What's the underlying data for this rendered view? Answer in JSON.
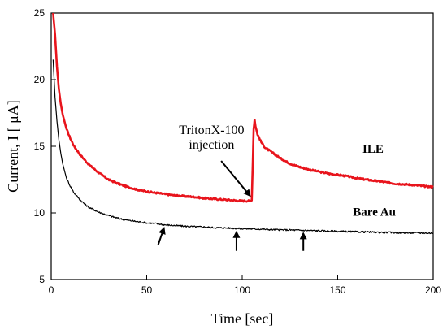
{
  "chart_data": {
    "type": "line",
    "xlabel": "Time [sec]",
    "ylabel": "Current, I [ μA]",
    "xlim": [
      0,
      200
    ],
    "ylim": [
      5,
      25
    ],
    "xticks": [
      0,
      50,
      100,
      150,
      200
    ],
    "yticks": [
      5,
      10,
      15,
      20,
      25
    ],
    "grid": false,
    "series": [
      {
        "name": "ILE",
        "color": "#e8141c",
        "x": [
          1,
          2,
          3,
          4,
          5,
          6,
          8,
          10,
          12,
          15,
          18,
          20,
          25,
          30,
          35,
          40,
          45,
          50,
          55,
          60,
          65,
          70,
          75,
          80,
          85,
          90,
          95,
          100,
          104,
          105,
          105.5,
          106,
          106.5,
          107,
          108,
          110,
          112,
          115,
          118,
          120,
          125,
          130,
          135,
          140,
          145,
          150,
          155,
          160,
          165,
          170,
          175,
          180,
          185,
          190,
          195,
          200
        ],
        "y": [
          25,
          23.4,
          21.0,
          19.3,
          18.2,
          17.4,
          16.3,
          15.6,
          15.0,
          14.4,
          13.9,
          13.6,
          13.0,
          12.5,
          12.2,
          11.95,
          11.75,
          11.6,
          11.5,
          11.4,
          11.3,
          11.25,
          11.2,
          11.1,
          11.05,
          11.0,
          10.95,
          10.9,
          10.9,
          10.95,
          13.5,
          16.3,
          17.0,
          16.5,
          15.9,
          15.3,
          14.9,
          14.6,
          14.3,
          14.1,
          13.7,
          13.45,
          13.25,
          13.1,
          12.95,
          12.85,
          12.75,
          12.6,
          12.5,
          12.4,
          12.3,
          12.2,
          12.15,
          12.1,
          12.0,
          11.95
        ]
      },
      {
        "name": "Bare Au",
        "color": "#000000",
        "x": [
          1,
          2,
          3,
          4,
          5,
          6,
          8,
          10,
          12,
          15,
          18,
          20,
          25,
          30,
          35,
          40,
          45,
          50,
          55,
          60,
          65,
          70,
          75,
          80,
          85,
          90,
          95,
          100,
          105,
          110,
          115,
          120,
          125,
          130,
          135,
          140,
          145,
          150,
          155,
          160,
          165,
          170,
          175,
          180,
          185,
          190,
          195,
          200
        ],
        "y": [
          21.5,
          18.7,
          16.9,
          15.5,
          14.5,
          13.7,
          12.6,
          12.0,
          11.5,
          11.0,
          10.6,
          10.4,
          10.05,
          9.8,
          9.6,
          9.45,
          9.35,
          9.25,
          9.2,
          9.1,
          9.05,
          9.0,
          8.97,
          8.95,
          8.9,
          8.88,
          8.85,
          8.82,
          8.8,
          8.78,
          8.75,
          8.73,
          8.72,
          8.7,
          8.68,
          8.66,
          8.64,
          8.62,
          8.6,
          8.58,
          8.57,
          8.55,
          8.54,
          8.52,
          8.5,
          8.5,
          8.49,
          8.48
        ]
      }
    ],
    "series_labels": [
      {
        "text": "ILE",
        "x": 163,
        "y": 14.5
      },
      {
        "text": "Bare Au",
        "x": 158,
        "y": 9.8
      }
    ],
    "annotations": [
      {
        "lines": [
          "TritonX-100",
          "injection"
        ],
        "text_x": 84,
        "text_y": 15.9,
        "arrow_from": [
          89,
          13.9
        ],
        "arrow_to": [
          104,
          11.3
        ]
      }
    ],
    "marker_arrows": [
      {
        "x_from": 56,
        "y_from": 7.6,
        "x_to": 59,
        "y_to": 8.85
      },
      {
        "x_from": 97,
        "y_from": 7.15,
        "x_to": 97,
        "y_to": 8.55
      },
      {
        "x_from": 132,
        "y_from": 7.15,
        "x_to": 132,
        "y_to": 8.45
      }
    ]
  }
}
